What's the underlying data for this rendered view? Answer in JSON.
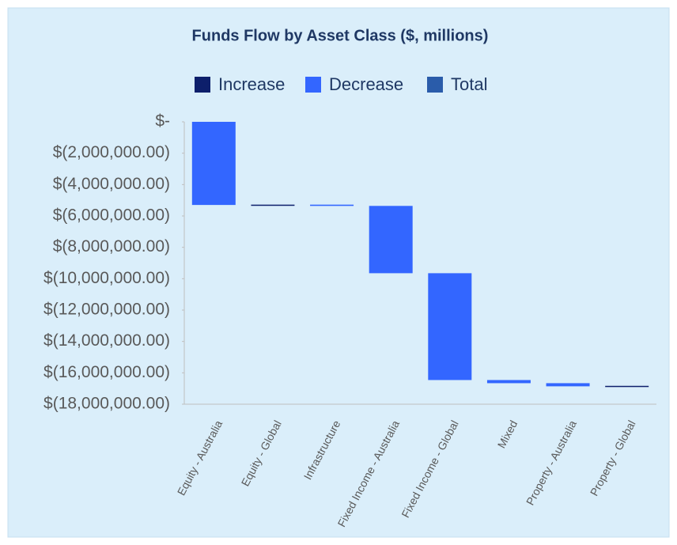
{
  "chart_data": {
    "type": "waterfall",
    "title": "Funds Flow by Asset Class ($, millions)",
    "legend": [
      {
        "name": "Increase",
        "color": "#0d1f6b"
      },
      {
        "name": "Decrease",
        "color": "#3366ff"
      },
      {
        "name": "Total",
        "color": "#2a5caa"
      }
    ],
    "categories": [
      "Equity - Australia",
      "Equity - Global",
      "Infrastructure",
      "Fixed Income - Australia",
      "Fixed Income - Global",
      "Mixed",
      "Property - Australia",
      "Property - Global"
    ],
    "values": [
      -5300000,
      20000,
      -80000,
      -4290000,
      -6810000,
      -200000,
      -200000,
      30000
    ],
    "ylim": [
      -18000000,
      0
    ],
    "yticks": [
      {
        "value": 0,
        "label": "$-"
      },
      {
        "value": -2000000,
        "label": "$(2,000,000.00)"
      },
      {
        "value": -4000000,
        "label": "$(4,000,000.00)"
      },
      {
        "value": -6000000,
        "label": "$(6,000,000.00)"
      },
      {
        "value": -8000000,
        "label": "$(8,000,000.00)"
      },
      {
        "value": -10000000,
        "label": "$(10,000,000.00)"
      },
      {
        "value": -12000000,
        "label": "$(12,000,000.00)"
      },
      {
        "value": -14000000,
        "label": "$(14,000,000.00)"
      },
      {
        "value": -16000000,
        "label": "$(16,000,000.00)"
      },
      {
        "value": -18000000,
        "label": "$(18,000,000.00)"
      }
    ],
    "grid": false
  }
}
